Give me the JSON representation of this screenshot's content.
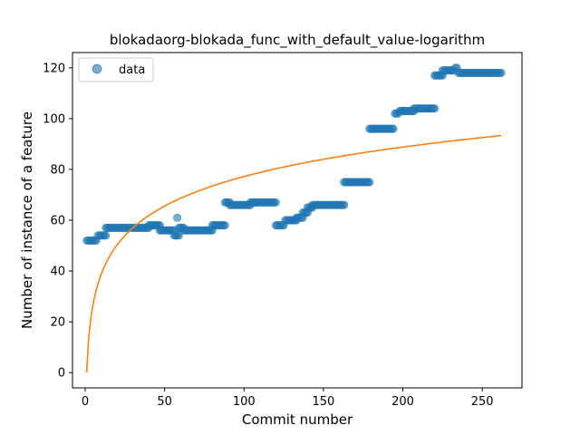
{
  "chart_data": {
    "type": "scatter",
    "title": "blokadaorg-blokada_func_with_default_value-logarithm",
    "xlabel": "Commit number",
    "ylabel": "Number of instance of a feature",
    "xlim": [
      -8,
      275
    ],
    "ylim": [
      -6,
      126
    ],
    "xticks": [
      0,
      50,
      100,
      150,
      200,
      250
    ],
    "yticks": [
      0,
      20,
      40,
      60,
      80,
      100,
      120
    ],
    "grid": false,
    "legend_position": "top-left",
    "colors": {
      "data": "#1f77b4",
      "fit": "#ff7f0e"
    },
    "series": [
      {
        "name": "data",
        "kind": "scatter",
        "segments": [
          [
            1,
            7,
            52
          ],
          [
            8,
            13,
            54
          ],
          [
            13,
            40,
            57
          ],
          [
            40,
            47,
            58
          ],
          [
            47,
            52,
            56
          ],
          [
            53,
            56,
            56
          ],
          [
            56,
            59,
            54
          ],
          [
            59,
            62,
            57
          ],
          [
            62,
            80,
            56
          ],
          [
            80,
            88,
            58
          ],
          [
            88,
            91,
            67
          ],
          [
            91,
            104,
            66
          ],
          [
            104,
            120,
            67
          ],
          [
            120,
            125,
            58
          ],
          [
            126,
            133,
            60
          ],
          [
            133,
            137,
            61
          ],
          [
            137,
            140,
            63
          ],
          [
            140,
            143,
            65
          ],
          [
            143,
            163,
            66
          ],
          [
            163,
            179,
            75
          ],
          [
            179,
            194,
            96
          ],
          [
            195,
            197,
            102
          ],
          [
            198,
            207,
            103
          ],
          [
            207,
            220,
            104
          ],
          [
            220,
            225,
            117
          ],
          [
            225,
            232,
            119
          ],
          [
            233,
            234,
            120
          ],
          [
            235,
            262,
            118
          ]
        ],
        "points": [
          [
            58,
            61
          ]
        ]
      },
      {
        "kind": "line",
        "fit": "logarithm",
        "a": 16.76,
        "b": 0,
        "x_range": [
          1,
          262
        ]
      }
    ]
  }
}
